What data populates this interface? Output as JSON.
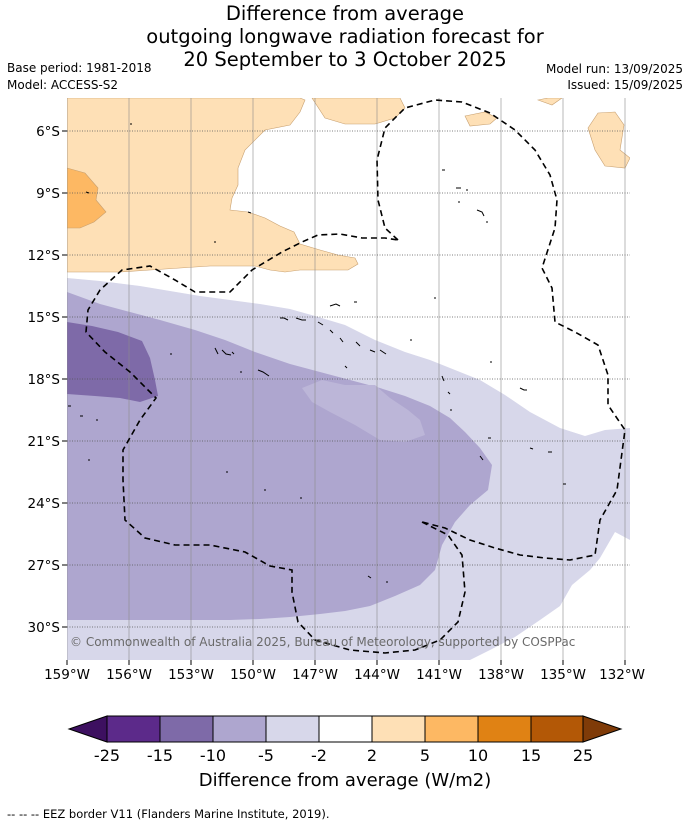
{
  "title": {
    "line1": "Difference from average",
    "line2": "outgoing longwave radiation forecast for",
    "line3": "20 September to 3 October 2025"
  },
  "meta": {
    "base_period": "Base period: 1981-2018",
    "model": "Model: ACCESS-S2",
    "model_run": "Model run: 13/09/2025",
    "issued": "Issued: 15/09/2025"
  },
  "map": {
    "x_ticks": [
      "159°W",
      "156°W",
      "153°W",
      "150°W",
      "147°W",
      "144°W",
      "141°W",
      "138°W",
      "135°W",
      "132°W"
    ],
    "y_ticks": [
      "6°S",
      "9°S",
      "12°S",
      "15°S",
      "18°S",
      "21°S",
      "24°S",
      "27°S",
      "30°S"
    ],
    "copyright": "© Commonwealth of Australia 2025, Bureau of Meteorology, supported by COSPPac",
    "gridlines": true,
    "eez_border_style": "dashed"
  },
  "colorbar": {
    "tick_labels": [
      "-25",
      "-15",
      "-10",
      "-5",
      "-2",
      "2",
      "5",
      "10",
      "15",
      "25"
    ],
    "colors": [
      "#3d1060",
      "#5c2a8a",
      "#7e6aa8",
      "#aea6cf",
      "#d7d7ea",
      "#ffffff",
      "#fee0b6",
      "#fdb863",
      "#e08214",
      "#b35806",
      "#7f3b08"
    ],
    "label": "Difference from average (W/m2)"
  },
  "footer": "--  --  -- EEZ border V11 (Flanders Marine Institute, 2019)."
}
